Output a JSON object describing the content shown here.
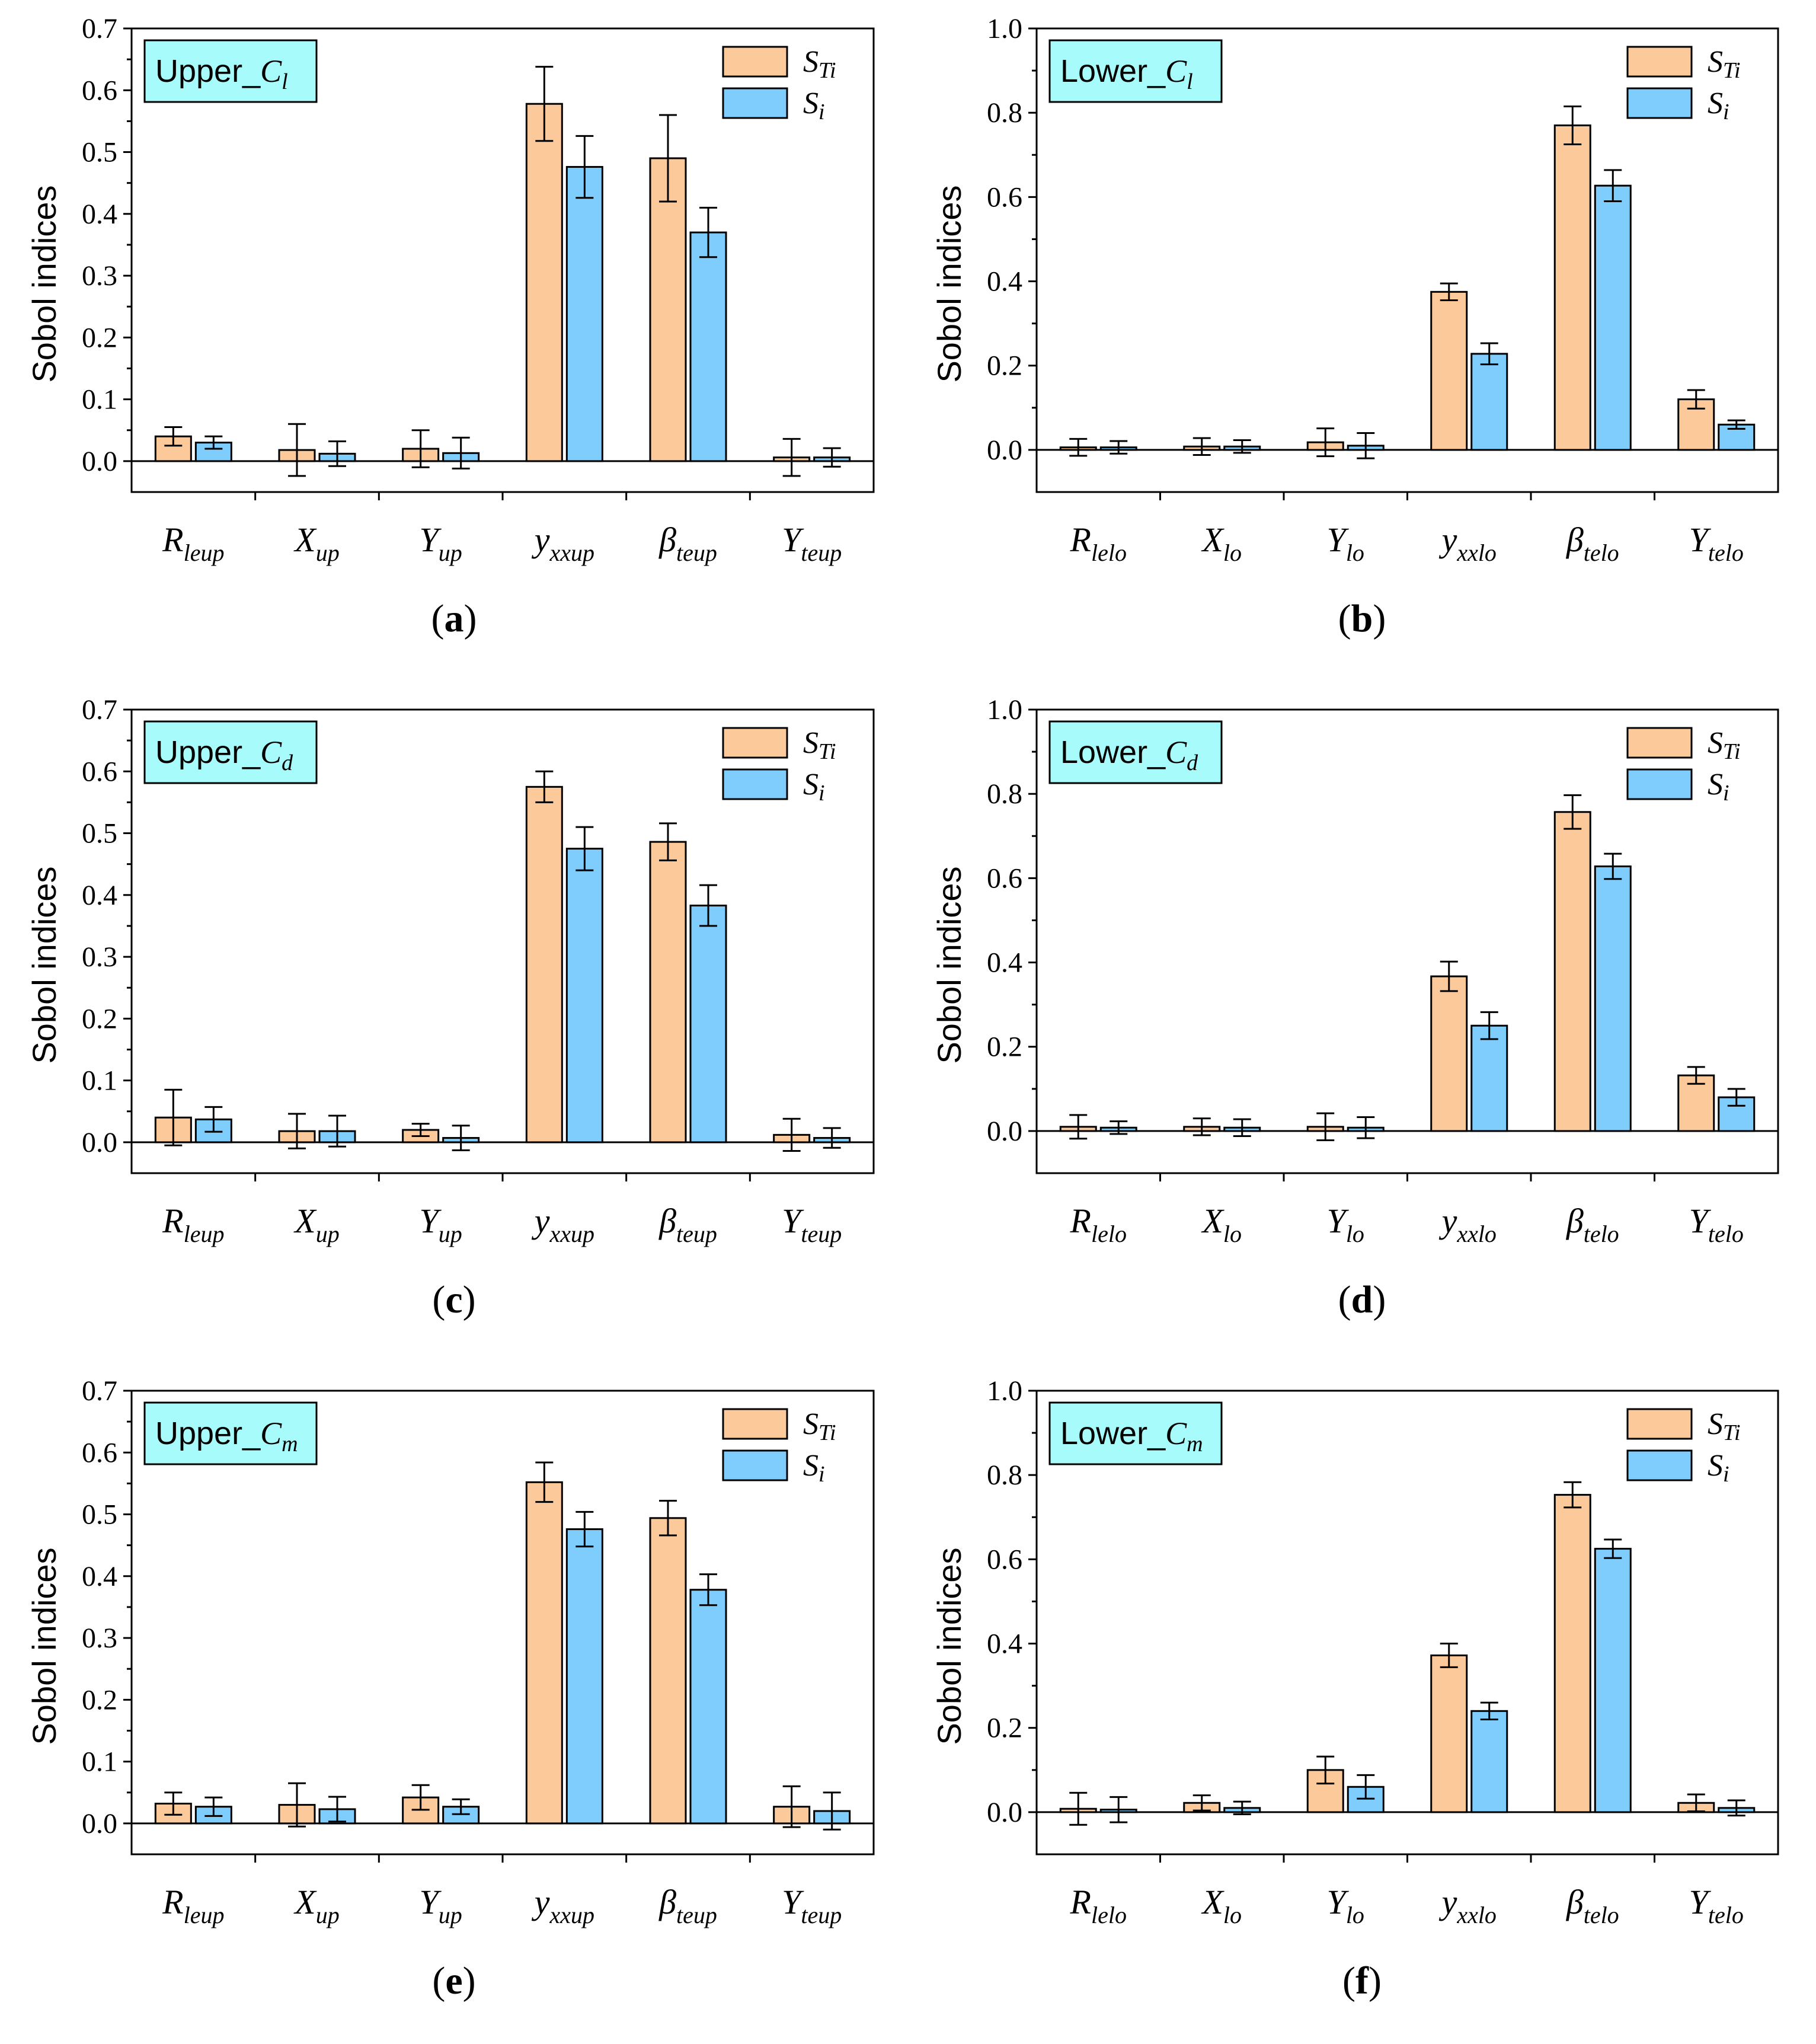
{
  "colors": {
    "sti": "#fcc99a",
    "si": "#7fcdfc",
    "title_box": "#a7fbfb"
  },
  "legend": {
    "sti_main": "S",
    "sti_sub": "Ti",
    "si_main": "S",
    "si_sub": "i"
  },
  "ylabel_text": "Sobol indices",
  "chart_data": [
    {
      "type": "bar",
      "title_main": "Upper_",
      "title_ital": "C",
      "title_sub": "l",
      "caption": "a",
      "ylabel": "Sobol indices",
      "ylim": [
        -0.05,
        0.7
      ],
      "yticks": [
        "0.0",
        "0.1",
        "0.2",
        "0.3",
        "0.4",
        "0.5",
        "0.6",
        "0.7"
      ],
      "categories": [
        {
          "main": "R",
          "sub": "leup"
        },
        {
          "main": "X",
          "sub": "up"
        },
        {
          "main": "Y",
          "sub": "up"
        },
        {
          "main": "y",
          "sub": "xxup"
        },
        {
          "main": "β",
          "sub": "teup"
        },
        {
          "main": "Y",
          "sub": "teup"
        }
      ],
      "series": [
        {
          "name": "STi",
          "values": [
            0.04,
            0.018,
            0.02,
            0.578,
            0.49,
            0.006
          ],
          "err": [
            0.015,
            0.042,
            0.03,
            0.06,
            0.07,
            0.03
          ]
        },
        {
          "name": "Si",
          "values": [
            0.03,
            0.012,
            0.013,
            0.476,
            0.37,
            0.006
          ],
          "err": [
            0.01,
            0.02,
            0.025,
            0.05,
            0.04,
            0.015
          ]
        }
      ]
    },
    {
      "type": "bar",
      "title_main": "Lower_",
      "title_ital": "C",
      "title_sub": "l",
      "caption": "b",
      "ylabel": "Sobol indices",
      "ylim": [
        -0.1,
        1.0
      ],
      "yticks": [
        "0.0",
        "0.2",
        "0.4",
        "0.6",
        "0.8",
        "1.0"
      ],
      "categories": [
        {
          "main": "R",
          "sub": "lelo"
        },
        {
          "main": "X",
          "sub": "lo"
        },
        {
          "main": "Y",
          "sub": "lo"
        },
        {
          "main": "y",
          "sub": "xxlo"
        },
        {
          "main": "β",
          "sub": "telo"
        },
        {
          "main": "Y",
          "sub": "telo"
        }
      ],
      "series": [
        {
          "name": "STi",
          "values": [
            0.006,
            0.008,
            0.018,
            0.375,
            0.77,
            0.12
          ],
          "err": [
            0.02,
            0.02,
            0.033,
            0.02,
            0.045,
            0.022
          ]
        },
        {
          "name": "Si",
          "values": [
            0.006,
            0.008,
            0.01,
            0.228,
            0.627,
            0.06
          ],
          "err": [
            0.015,
            0.015,
            0.03,
            0.025,
            0.037,
            0.01
          ]
        }
      ]
    },
    {
      "type": "bar",
      "title_main": "Upper_",
      "title_ital": "C",
      "title_sub": "d",
      "caption": "c",
      "ylabel": "Sobol indices",
      "ylim": [
        -0.05,
        0.7
      ],
      "yticks": [
        "0.0",
        "0.1",
        "0.2",
        "0.3",
        "0.4",
        "0.5",
        "0.6",
        "0.7"
      ],
      "categories": [
        {
          "main": "R",
          "sub": "leup"
        },
        {
          "main": "X",
          "sub": "up"
        },
        {
          "main": "Y",
          "sub": "up"
        },
        {
          "main": "y",
          "sub": "xxup"
        },
        {
          "main": "β",
          "sub": "teup"
        },
        {
          "main": "Y",
          "sub": "teup"
        }
      ],
      "series": [
        {
          "name": "STi",
          "values": [
            0.04,
            0.018,
            0.02,
            0.575,
            0.486,
            0.012
          ],
          "err": [
            0.045,
            0.028,
            0.01,
            0.025,
            0.03,
            0.026
          ]
        },
        {
          "name": "Si",
          "values": [
            0.037,
            0.018,
            0.007,
            0.475,
            0.383,
            0.007
          ],
          "err": [
            0.02,
            0.025,
            0.02,
            0.035,
            0.033,
            0.016
          ]
        }
      ]
    },
    {
      "type": "bar",
      "title_main": "Lower_",
      "title_ital": "C",
      "title_sub": "d",
      "caption": "d",
      "ylabel": "Sobol indices",
      "ylim": [
        -0.1,
        1.0
      ],
      "yticks": [
        "0.0",
        "0.2",
        "0.4",
        "0.6",
        "0.8",
        "1.0"
      ],
      "categories": [
        {
          "main": "R",
          "sub": "lelo"
        },
        {
          "main": "X",
          "sub": "lo"
        },
        {
          "main": "Y",
          "sub": "lo"
        },
        {
          "main": "y",
          "sub": "xxlo"
        },
        {
          "main": "β",
          "sub": "telo"
        },
        {
          "main": "Y",
          "sub": "telo"
        }
      ],
      "series": [
        {
          "name": "STi",
          "values": [
            0.01,
            0.01,
            0.01,
            0.367,
            0.757,
            0.132
          ],
          "err": [
            0.028,
            0.02,
            0.032,
            0.035,
            0.04,
            0.02
          ]
        },
        {
          "name": "Si",
          "values": [
            0.008,
            0.008,
            0.008,
            0.25,
            0.628,
            0.08
          ],
          "err": [
            0.015,
            0.02,
            0.025,
            0.032,
            0.03,
            0.02
          ]
        }
      ]
    },
    {
      "type": "bar",
      "title_main": "Upper_",
      "title_ital": "C",
      "title_sub": "m",
      "caption": "e",
      "ylabel": "Sobol indices",
      "ylim": [
        -0.05,
        0.7
      ],
      "yticks": [
        "0.0",
        "0.1",
        "0.2",
        "0.3",
        "0.4",
        "0.5",
        "0.6",
        "0.7"
      ],
      "categories": [
        {
          "main": "R",
          "sub": "leup"
        },
        {
          "main": "X",
          "sub": "up"
        },
        {
          "main": "Y",
          "sub": "up"
        },
        {
          "main": "y",
          "sub": "xxup"
        },
        {
          "main": "β",
          "sub": "teup"
        },
        {
          "main": "Y",
          "sub": "teup"
        }
      ],
      "series": [
        {
          "name": "STi",
          "values": [
            0.032,
            0.03,
            0.042,
            0.552,
            0.494,
            0.027
          ],
          "err": [
            0.018,
            0.035,
            0.02,
            0.032,
            0.028,
            0.033
          ]
        },
        {
          "name": "Si",
          "values": [
            0.027,
            0.023,
            0.027,
            0.476,
            0.378,
            0.02
          ],
          "err": [
            0.015,
            0.02,
            0.012,
            0.028,
            0.025,
            0.03
          ]
        }
      ]
    },
    {
      "type": "bar",
      "title_main": "Lower_",
      "title_ital": "C",
      "title_sub": "m",
      "caption": "f",
      "ylabel": "Sobol indices",
      "ylim": [
        -0.1,
        1.0
      ],
      "yticks": [
        "0.0",
        "0.2",
        "0.4",
        "0.6",
        "0.8",
        "1.0"
      ],
      "categories": [
        {
          "main": "R",
          "sub": "lelo"
        },
        {
          "main": "X",
          "sub": "lo"
        },
        {
          "main": "Y",
          "sub": "lo"
        },
        {
          "main": "y",
          "sub": "xxlo"
        },
        {
          "main": "β",
          "sub": "telo"
        },
        {
          "main": "Y",
          "sub": "telo"
        }
      ],
      "series": [
        {
          "name": "STi",
          "values": [
            0.008,
            0.022,
            0.1,
            0.372,
            0.753,
            0.022
          ],
          "err": [
            0.038,
            0.018,
            0.032,
            0.028,
            0.03,
            0.02
          ]
        },
        {
          "name": "Si",
          "values": [
            0.006,
            0.01,
            0.06,
            0.24,
            0.625,
            0.01
          ],
          "err": [
            0.03,
            0.015,
            0.028,
            0.02,
            0.022,
            0.018
          ]
        }
      ]
    }
  ]
}
